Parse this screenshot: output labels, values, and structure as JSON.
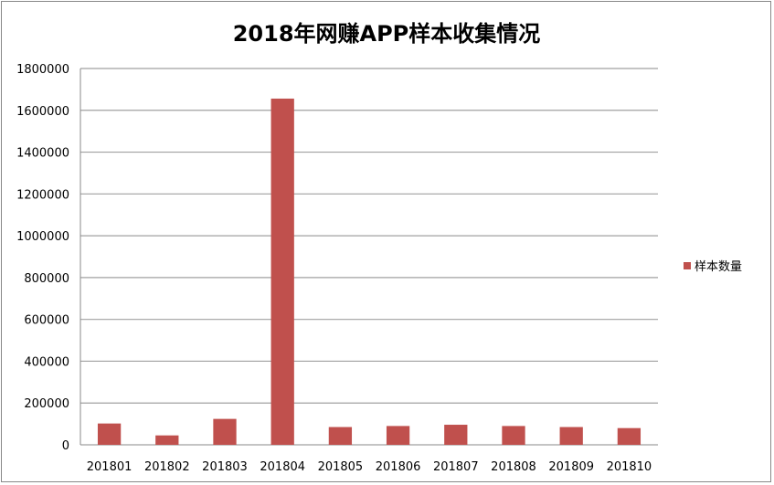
{
  "chart_data": {
    "type": "bar",
    "title": "2018年网赚APP样本收集情况",
    "categories": [
      "201801",
      "201802",
      "201803",
      "201804",
      "201805",
      "201806",
      "201807",
      "201808",
      "201809",
      "201810"
    ],
    "series": [
      {
        "name": "样本数量",
        "values": [
          102000,
          45000,
          124000,
          1656000,
          85000,
          90000,
          96000,
          90000,
          85000,
          80000
        ]
      }
    ],
    "yticks": [
      "0",
      "200000",
      "400000",
      "600000",
      "800000",
      "1000000",
      "1200000",
      "1400000",
      "1600000",
      "1800000"
    ],
    "ylim": [
      0,
      1800000
    ],
    "grid": true,
    "legend": "right",
    "bar_color": "#C0504D"
  }
}
